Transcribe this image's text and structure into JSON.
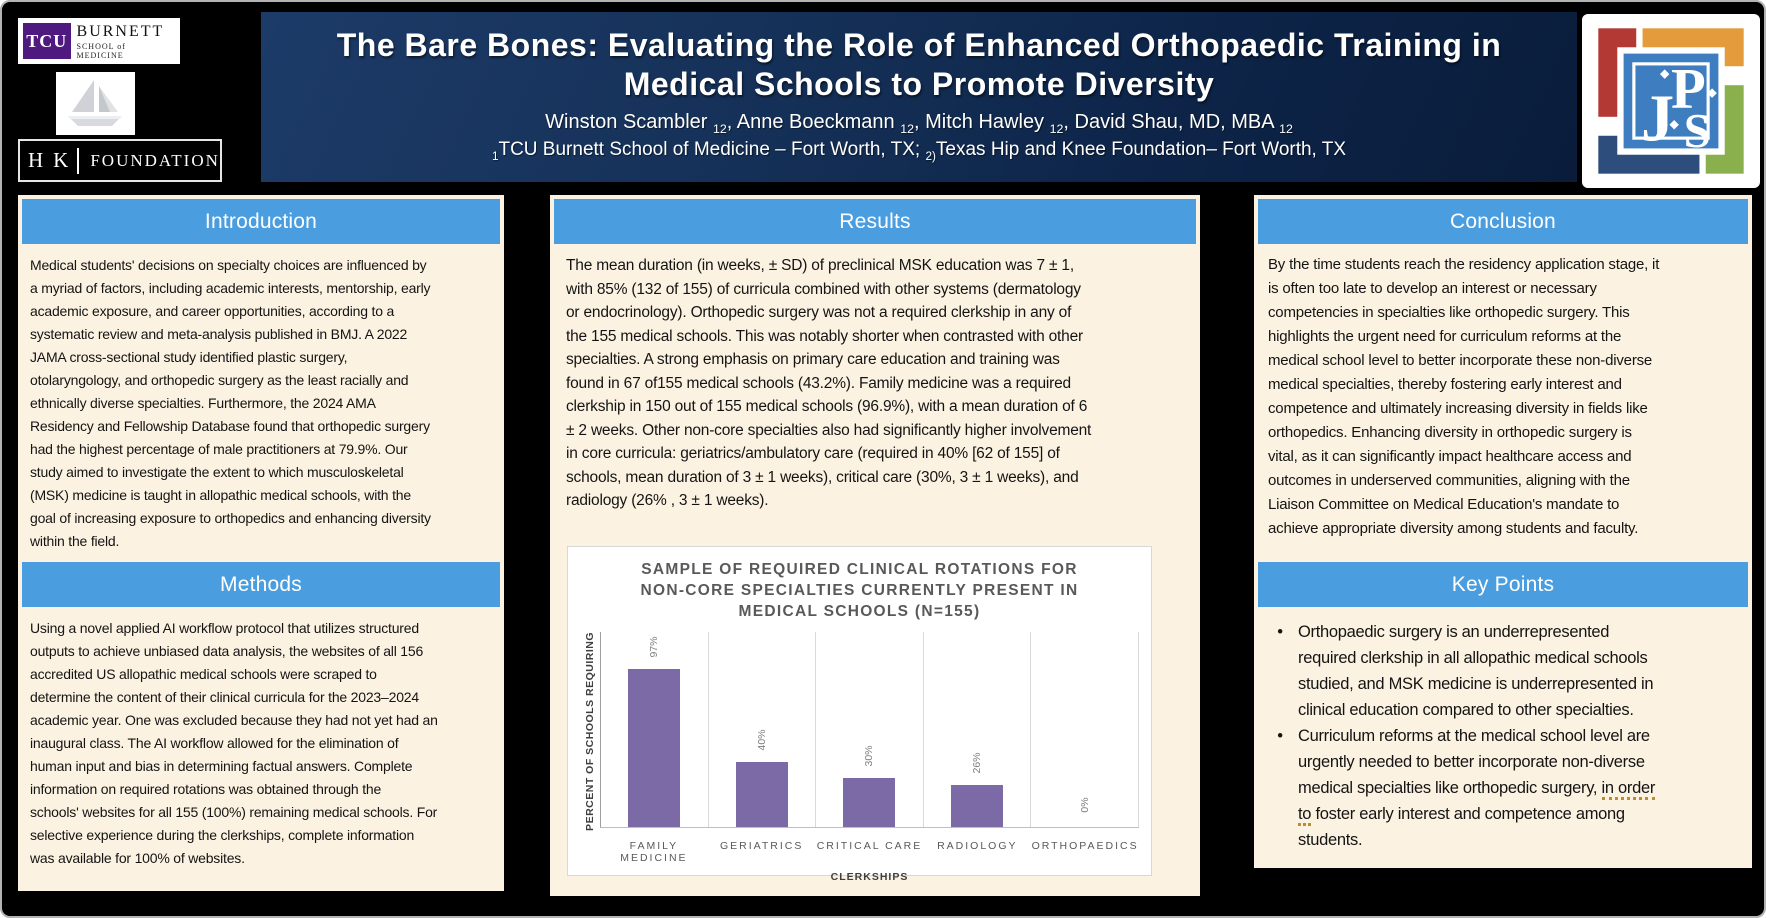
{
  "header": {
    "title": "The Bare Bones: Evaluating the Role of Enhanced Orthopaedic Training in\nMedical Schools to Promote Diversity",
    "authors": [
      {
        "name": "Winston Scambler ",
        "sub": "12"
      },
      {
        "name": ", Anne Boeckmann ",
        "sub": "12"
      },
      {
        "name": ", Mitch Hawley ",
        "sub": "12"
      },
      {
        "name": ", David Shau, MD, MBA ",
        "sub": "12"
      }
    ],
    "affiliation": {
      "sup1": "1",
      "text1": "TCU Burnett School of Medicine – Fort Worth, TX; ",
      "sup2": "2)",
      "text2": "Texas Hip and Knee Foundation– Fort Worth, TX"
    }
  },
  "logos": {
    "tcu": {
      "abbr": "TCU",
      "name": "BURNETT",
      "subtitle": "SCHOOL of MEDICINE"
    },
    "htk": {
      "h": "H",
      "k": "K",
      "text": "FOUNDATION"
    },
    "jps": {
      "letters": "JPS"
    }
  },
  "sections": {
    "introduction": {
      "title": "Introduction",
      "body": "Medical students' decisions on specialty choices are influenced by\na myriad of factors, including academic interests, mentorship, early\nacademic exposure, and career opportunities, according to a\nsystematic review and meta-analysis published in BMJ. A 2022\nJAMA cross-sectional study identified plastic surgery,\notolaryngology, and orthopedic surgery as the least racially and\nethnically diverse specialties. Furthermore, the 2024 AMA\nResidency and Fellowship Database found that orthopedic surgery\nhad the highest percentage of male practitioners at 79.9%. Our\nstudy aimed to investigate the extent to which musculoskeletal\n(MSK) medicine is taught in allopathic medical schools, with the\ngoal of increasing exposure to orthopedics and enhancing diversity\nwithin the field."
    },
    "methods": {
      "title": "Methods",
      "body": "Using a novel applied AI workflow protocol that utilizes structured\noutputs to achieve unbiased data analysis, the websites of all 156\naccredited US allopathic medical schools were scraped to\ndetermine the content of their clinical curricula for the 2023–2024\nacademic year. One was excluded because they had not yet had an\ninaugural class. The AI workflow allowed for the elimination of\nhuman input and bias in determining factual answers. Complete\ninformation on required rotations was obtained through the\nschools' websites for all 155 (100%) remaining medical schools. For\nselective experience during the clerkships, complete information\nwas available for 100% of websites."
    },
    "results": {
      "title": "Results",
      "body": "The mean duration (in weeks, ± SD) of preclinical MSK education was 7 ± 1,\nwith 85% (132 of 155) of curricula combined with other systems (dermatology\nor endocrinology). Orthopedic surgery was not a required clerkship in any of\nthe 155 medical schools. This was notably shorter when contrasted with other\nspecialties. A strong emphasis on primary care education and training was\nfound in 67 of155 medical schools (43.2%). Family medicine was a required\nclerkship in 150 out of 155 medical schools (96.9%), with a mean duration of 6\n± 2 weeks. Other non-core specialties also had significantly higher involvement\nin core curricula: geriatrics/ambulatory care (required in 40% [62 of 155] of\nschools, mean duration of 3 ± 1 weeks), critical care (30%, 3 ± 1 weeks), and\nradiology (26% , 3 ± 1 weeks)."
    },
    "conclusion": {
      "title": "Conclusion",
      "body": "By the time students reach the residency application stage, it\nis often too late to develop an interest or necessary\ncompetencies in specialties like orthopedic surgery. This\nhighlights the urgent need for curriculum reforms at the\nmedical school level to better incorporate these non-diverse\nmedical specialties, thereby fostering early interest and\ncompetence and ultimately increasing diversity in fields like\northopedics. Enhancing diversity in orthopedic surgery is\nvital, as it can significantly impact healthcare access and\noutcomes in underserved communities, aligning with the\nLiaison Committee on Medical Education's mandate to\nachieve appropriate diversity among students and faculty."
    },
    "key_points": {
      "title": "Key Points",
      "bullet_char": "•",
      "bullet1": "Orthopaedic surgery is an underrepresented\nrequired clerkship in all allopathic medical schools\nstudied, and MSK medicine is underrepresented in\nclinical education compared to other specialties.",
      "bullet2_pre": "Curriculum reforms at the medical school level are\nurgently needed to better incorporate non-diverse\nmedical specialties like orthopedic surgery, ",
      "bullet2_u1": "in order",
      "bullet2_mid": "\n",
      "bullet2_u2": "to",
      "bullet2_post": " foster early interest and competence among\nstudents."
    }
  },
  "chart_data": {
    "type": "bar",
    "title": "SAMPLE OF REQUIRED CLINICAL ROTATIONS FOR\nNON-CORE SPECIALTIES CURRENTLY PRESENT IN\nMEDICAL SCHOOLS (N=155)",
    "categories": [
      "FAMILY MEDICINE",
      "GERIATRICS",
      "CRITICAL CARE",
      "RADIOLOGY",
      "ORTHOPAEDICS"
    ],
    "values": [
      97,
      40,
      30,
      26,
      0
    ],
    "value_labels": [
      "97%",
      "40%",
      "30%",
      "26%",
      "0%"
    ],
    "xlabel": "CLERKSHIPS",
    "ylabel": "PERCENT OF SCHOOLS REQUIRING",
    "ylim": [
      0,
      120
    ],
    "bar_color": "#7b6aa5",
    "gridlines": "vertical category separators",
    "legend_position": "none"
  },
  "colors": {
    "section_header_blue": "#4a9ee0",
    "panel_cream": "#fcf2e1",
    "header_navy": "#12284c",
    "bar_purple": "#7b6aa5"
  }
}
